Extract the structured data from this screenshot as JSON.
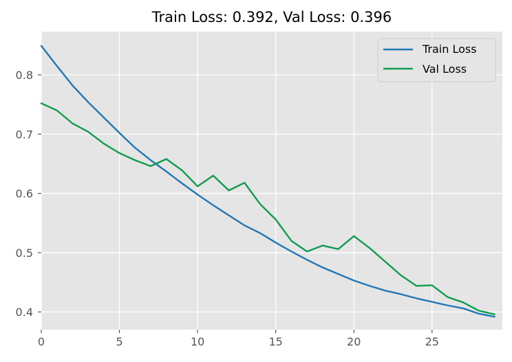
{
  "chart_data": {
    "type": "line",
    "title": "Train Loss: 0.392, Val Loss: 0.396",
    "xlabel": "",
    "ylabel": "",
    "xlim": [
      0,
      29.5
    ],
    "ylim": [
      0.37,
      0.873
    ],
    "xticks": [
      0,
      5,
      10,
      15,
      20,
      25
    ],
    "yticks": [
      0.4,
      0.5,
      0.6,
      0.7,
      0.8
    ],
    "xtick_labels": [
      "0",
      "5",
      "10",
      "15",
      "20",
      "25"
    ],
    "ytick_labels": [
      "0.4",
      "0.5",
      "0.6",
      "0.7",
      "0.8"
    ],
    "grid": true,
    "legend_position": "top-right",
    "background_color": "#e5e5e5",
    "grid_color": "#ffffff",
    "x": [
      0,
      1,
      2,
      3,
      4,
      5,
      6,
      7,
      8,
      9,
      10,
      11,
      12,
      13,
      14,
      15,
      16,
      17,
      18,
      19,
      20,
      21,
      22,
      23,
      24,
      25,
      26,
      27,
      28,
      29
    ],
    "series": [
      {
        "name": "Train Loss",
        "color": "#1f77b4",
        "values": [
          0.849,
          0.815,
          0.782,
          0.754,
          0.728,
          0.702,
          0.677,
          0.656,
          0.637,
          0.617,
          0.598,
          0.58,
          0.563,
          0.546,
          0.533,
          0.517,
          0.502,
          0.488,
          0.475,
          0.464,
          0.453,
          0.444,
          0.436,
          0.43,
          0.423,
          0.417,
          0.411,
          0.406,
          0.397,
          0.392
        ]
      },
      {
        "name": "Val Loss",
        "color": "#109c4f",
        "values": [
          0.752,
          0.74,
          0.718,
          0.704,
          0.684,
          0.668,
          0.656,
          0.646,
          0.658,
          0.639,
          0.612,
          0.63,
          0.605,
          0.618,
          0.582,
          0.556,
          0.52,
          0.502,
          0.512,
          0.506,
          0.528,
          0.508,
          0.485,
          0.462,
          0.444,
          0.445,
          0.425,
          0.416,
          0.402,
          0.396
        ]
      }
    ]
  }
}
